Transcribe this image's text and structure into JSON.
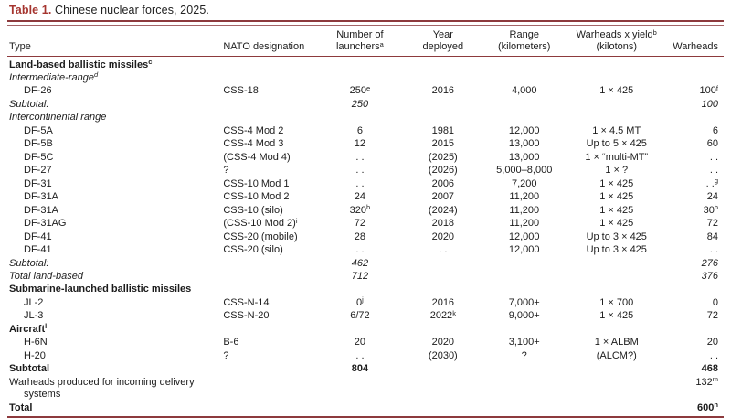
{
  "title": {
    "label": "Table 1.",
    "text": " Chinese nuclear forces, 2025."
  },
  "colors": {
    "accent_red": "#a5352f",
    "rule_maroon": "#8d3a3d",
    "text": "#1c1c1c"
  },
  "columns": [
    {
      "key": "type",
      "label": "Type",
      "align": "left"
    },
    {
      "key": "nato",
      "label": "NATO designation",
      "align": "left"
    },
    {
      "key": "launchers",
      "label": "Number of\nlaunchers^a",
      "align": "center"
    },
    {
      "key": "year",
      "label": "Year\ndeployed",
      "align": "center"
    },
    {
      "key": "range",
      "label": "Range\n(kilometers)",
      "align": "center"
    },
    {
      "key": "yield",
      "label": "Warheads x yield^b\n(kilotons)",
      "align": "center"
    },
    {
      "key": "warheads",
      "label": "Warheads",
      "align": "right"
    }
  ],
  "rows": [
    {
      "style": "section",
      "type": "Land-based ballistic missiles^c",
      "nato": "",
      "launchers": "",
      "year": "",
      "range": "",
      "yield": "",
      "warheads": ""
    },
    {
      "style": "subhead",
      "type": "Intermediate-range^d",
      "nato": "",
      "launchers": "",
      "year": "",
      "range": "",
      "yield": "",
      "warheads": ""
    },
    {
      "style": "item",
      "type": "DF-26",
      "nato": "CSS-18",
      "launchers": "250^e",
      "year": "2016",
      "range": "4,000",
      "yield": "1 × 425",
      "warheads": "100^f"
    },
    {
      "style": "subtotal",
      "type": "Subtotal:",
      "nato": "",
      "launchers": "250",
      "year": "",
      "range": "",
      "yield": "",
      "warheads": "100"
    },
    {
      "style": "subhead",
      "type": "Intercontinental range",
      "nato": "",
      "launchers": "",
      "year": "",
      "range": "",
      "yield": "",
      "warheads": ""
    },
    {
      "style": "item",
      "type": "DF-5A",
      "nato": "CSS-4 Mod 2",
      "launchers": "6",
      "year": "1981",
      "range": "12,000",
      "yield": "1 × 4.5 MT",
      "warheads": "6"
    },
    {
      "style": "item",
      "type": "DF-5B",
      "nato": "CSS-4 Mod 3",
      "launchers": "12",
      "year": "2015",
      "range": "13,000",
      "yield": "Up to 5 × 425",
      "warheads": "60"
    },
    {
      "style": "item",
      "type": "DF-5C",
      "nato": "(CSS-4 Mod 4)",
      "launchers": ". .",
      "year": "(2025)",
      "range": "13,000",
      "yield": "1 × “multi-MT”",
      "warheads": ". ."
    },
    {
      "style": "item",
      "type": "DF-27",
      "nato": "?",
      "launchers": ". .",
      "year": "(2026)",
      "range": "5,000–8,000",
      "yield": "1 × ?",
      "warheads": ". ."
    },
    {
      "style": "item",
      "type": "DF-31",
      "nato": "CSS-10 Mod 1",
      "launchers": ". .",
      "year": "2006",
      "range": "7,200",
      "yield": "1 × 425",
      "warheads": ". .^g"
    },
    {
      "style": "item",
      "type": "DF-31A",
      "nato": "CSS-10 Mod 2",
      "launchers": "24",
      "year": "2007",
      "range": "11,200",
      "yield": "1 × 425",
      "warheads": "24"
    },
    {
      "style": "item",
      "type": "DF-31A",
      "nato": "CSS-10 (silo)",
      "launchers": "320^h",
      "year": "(2024)",
      "range": "11,200",
      "yield": "1 × 425",
      "warheads": "30^h"
    },
    {
      "style": "item",
      "type": "DF-31AG",
      "nato": "(CSS-10 Mod 2)^i",
      "launchers": "72",
      "year": "2018",
      "range": "11,200",
      "yield": "1 × 425",
      "warheads": "72"
    },
    {
      "style": "item",
      "type": "DF-41",
      "nato": "CSS-20 (mobile)",
      "launchers": "28",
      "year": "2020",
      "range": "12,000",
      "yield": "Up to 3 × 425",
      "warheads": "84"
    },
    {
      "style": "item",
      "type": "DF-41",
      "nato": "CSS-20 (silo)",
      "launchers": ". .",
      "year": ". .",
      "range": "12,000",
      "yield": "Up to 3 × 425",
      "warheads": ". ."
    },
    {
      "style": "subtotal",
      "type": "Subtotal:",
      "nato": "",
      "launchers": "462",
      "year": "",
      "range": "",
      "yield": "",
      "warheads": "276"
    },
    {
      "style": "subtotal",
      "type": "Total land-based",
      "nato": "",
      "launchers": "712",
      "year": "",
      "range": "",
      "yield": "",
      "warheads": "376"
    },
    {
      "style": "section",
      "type": "Submarine-launched ballistic missiles",
      "nato": "",
      "launchers": "",
      "year": "",
      "range": "",
      "yield": "",
      "warheads": ""
    },
    {
      "style": "item",
      "type": "JL-2",
      "nato": "CSS-N-14",
      "launchers": "0^j",
      "year": "2016",
      "range": "7,000+",
      "yield": "1 × 700",
      "warheads": "0"
    },
    {
      "style": "item",
      "type": "JL-3",
      "nato": "CSS-N-20",
      "launchers": "6/72",
      "year": "2022^k",
      "range": "9,000+",
      "yield": "1 × 425",
      "warheads": "72"
    },
    {
      "style": "section",
      "type": "Aircraft^l",
      "nato": "",
      "launchers": "",
      "year": "",
      "range": "",
      "yield": "",
      "warheads": ""
    },
    {
      "style": "item",
      "type": "H-6N",
      "nato": "B-6",
      "launchers": "20",
      "year": "2020",
      "range": "3,100+",
      "yield": "1 × ALBM",
      "warheads": "20"
    },
    {
      "style": "item",
      "type": "H-20",
      "nato": "?",
      "launchers": ". .",
      "year": "(2030)",
      "range": "?",
      "yield": "(ALCM?)",
      "warheads": ". ."
    },
    {
      "style": "bold",
      "type": "Subtotal",
      "nato": "",
      "launchers": "804",
      "year": "",
      "range": "",
      "yield": "",
      "warheads": "468"
    },
    {
      "style": "wrap",
      "type": "Warheads produced for incoming delivery systems",
      "nato": "",
      "launchers": "",
      "year": "",
      "range": "",
      "yield": "",
      "warheads": "132^m"
    },
    {
      "style": "bold",
      "type": "Total",
      "nato": "",
      "launchers": "",
      "year": "",
      "range": "",
      "yield": "",
      "warheads": "600^n"
    }
  ]
}
